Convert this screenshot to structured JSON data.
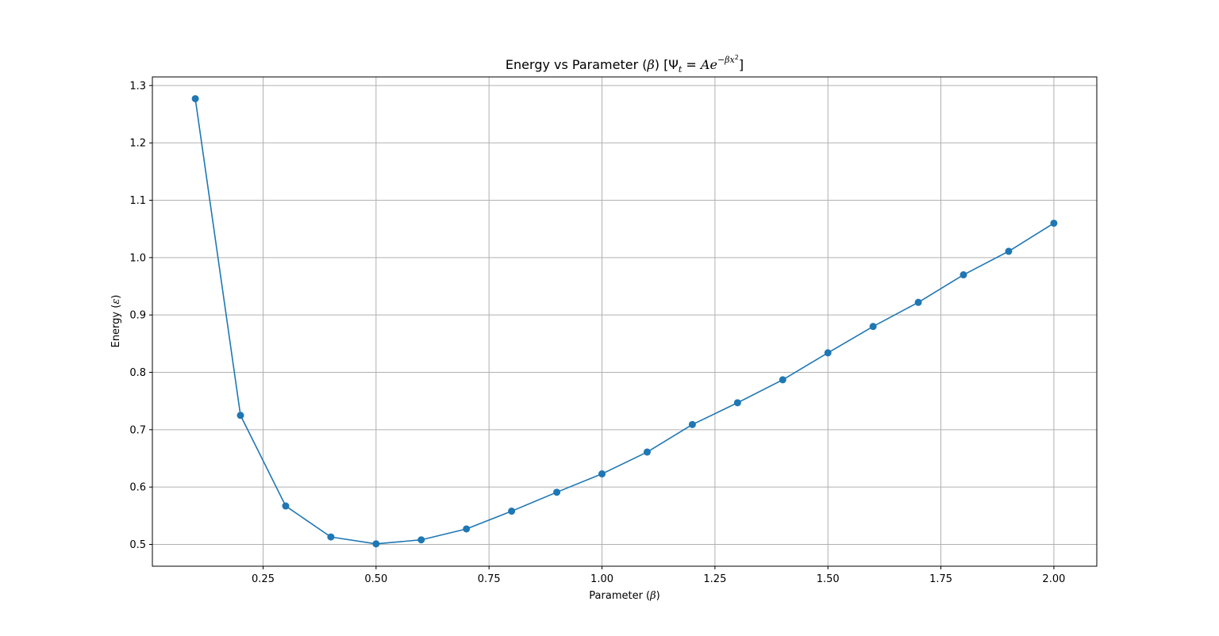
{
  "chart_data": {
    "type": "line",
    "title": {
      "prefix": "Energy vs Parameter (",
      "beta": "β",
      "middle": ") [Ψ",
      "t_sub": "t",
      "equals": " = ",
      "A": "A",
      "e": "e",
      "exponent": "−βx",
      "exp_power": "2",
      "suffix": "]"
    },
    "xlabel": {
      "prefix": "Parameter (",
      "symbol": "β",
      "suffix": ")"
    },
    "ylabel": {
      "prefix": "Energy (",
      "symbol": "ε",
      "suffix": ")"
    },
    "x": [
      0.1,
      0.2,
      0.3,
      0.4,
      0.5,
      0.6,
      0.7,
      0.8,
      0.9,
      1.0,
      1.1,
      1.2,
      1.3,
      1.4,
      1.5,
      1.6,
      1.7,
      1.8,
      1.9,
      2.0
    ],
    "series": [
      {
        "values": [
          1.277,
          0.725,
          0.567,
          0.513,
          0.501,
          0.508,
          0.527,
          0.558,
          0.591,
          0.623,
          0.661,
          0.709,
          0.747,
          0.787,
          0.834,
          0.88,
          0.922,
          0.97,
          1.011,
          1.06
        ],
        "color": "#1f77b4",
        "marker": "circle"
      }
    ],
    "xlim": [
      0.005,
      2.095
    ],
    "ylim": [
      0.462,
      1.315
    ],
    "xticks": [
      0.25,
      0.5,
      0.75,
      1.0,
      1.25,
      1.5,
      1.75,
      2.0
    ],
    "xtick_labels": [
      "0.25",
      "0.50",
      "0.75",
      "1.00",
      "1.25",
      "1.50",
      "1.75",
      "2.00"
    ],
    "yticks": [
      0.5,
      0.6,
      0.7,
      0.8,
      0.9,
      1.0,
      1.1,
      1.2,
      1.3
    ],
    "ytick_labels": [
      "0.5",
      "0.6",
      "0.7",
      "0.8",
      "0.9",
      "1.0",
      "1.1",
      "1.2",
      "1.3"
    ],
    "grid": true,
    "grid_color": "#b0b0b0"
  }
}
